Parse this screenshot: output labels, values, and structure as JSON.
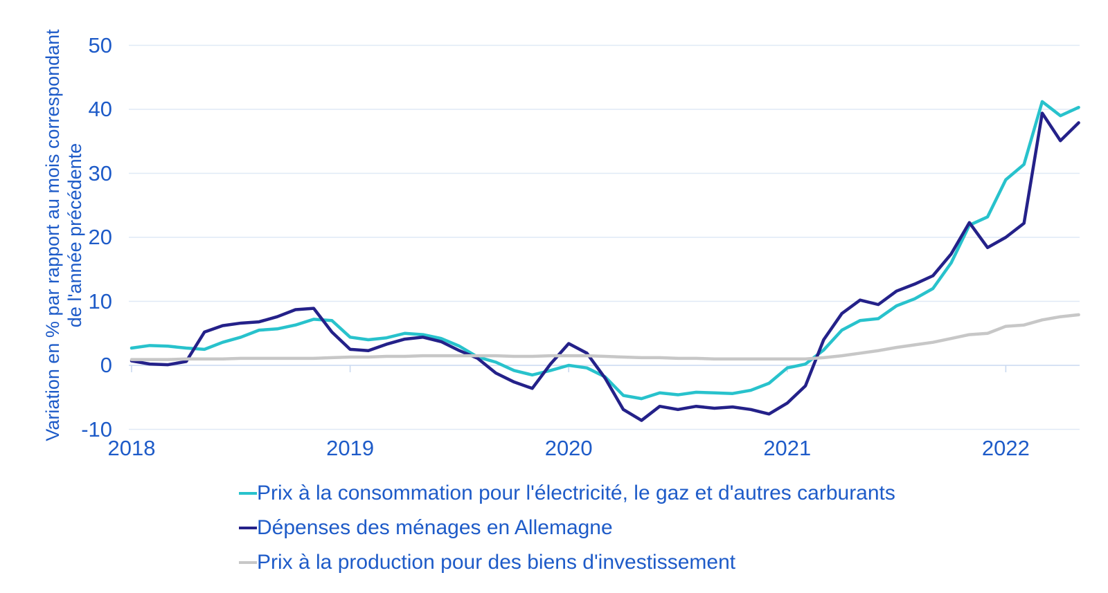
{
  "y_axis": {
    "title_line1": "Variation en % par rapport au mois correspondant",
    "title_line2": "de l'année précédente",
    "tick_labels": [
      "50",
      "40",
      "30",
      "20",
      "10",
      "0",
      "-10"
    ]
  },
  "x_axis": {
    "tick_labels": [
      "2018",
      "2019",
      "2020",
      "2021",
      "2022"
    ]
  },
  "colors": {
    "axis_text": "#1e5bc8",
    "gridline": "#dfe9f6",
    "zero_axis": "#c9d9f0",
    "series_consumer": "#28c2cc",
    "series_households": "#242189",
    "series_producer": "#c7c7c7",
    "background": "#ffffff"
  },
  "chart_data": {
    "type": "line",
    "title": "",
    "ylabel": "Variation en % par rapport au mois correspondant de l'année précédente",
    "xlabel": "",
    "ylim": [
      -10,
      50
    ],
    "y_ticks": [
      50,
      40,
      30,
      20,
      10,
      0,
      -10
    ],
    "grid": "horizontal",
    "legend_position": "bottom-left",
    "x_tick_labels": [
      "2018",
      "2019",
      "2020",
      "2021",
      "2022"
    ],
    "x": [
      "2018-01",
      "2018-02",
      "2018-03",
      "2018-04",
      "2018-05",
      "2018-06",
      "2018-07",
      "2018-08",
      "2018-09",
      "2018-10",
      "2018-11",
      "2018-12",
      "2019-01",
      "2019-02",
      "2019-03",
      "2019-04",
      "2019-05",
      "2019-06",
      "2019-07",
      "2019-08",
      "2019-09",
      "2019-10",
      "2019-11",
      "2019-12",
      "2020-01",
      "2020-02",
      "2020-03",
      "2020-04",
      "2020-05",
      "2020-06",
      "2020-07",
      "2020-08",
      "2020-09",
      "2020-10",
      "2020-11",
      "2020-12",
      "2021-01",
      "2021-02",
      "2021-03",
      "2021-04",
      "2021-05",
      "2021-06",
      "2021-07",
      "2021-08",
      "2021-09",
      "2021-10",
      "2021-11",
      "2021-12",
      "2022-01",
      "2022-02",
      "2022-03",
      "2022-04",
      "2022-05"
    ],
    "series": [
      {
        "name": "Prix à la consommation pour l'électricité, le gaz et d'autres carburants",
        "color": "#28c2cc",
        "values": [
          2.7,
          3.1,
          3.0,
          2.7,
          2.5,
          3.6,
          4.4,
          5.5,
          5.7,
          6.3,
          7.2,
          7.0,
          4.4,
          4.0,
          4.3,
          5.0,
          4.8,
          4.2,
          3.0,
          1.3,
          0.5,
          -0.8,
          -1.5,
          -0.8,
          0.0,
          -0.4,
          -1.8,
          -4.7,
          -5.2,
          -4.3,
          -4.6,
          -4.2,
          -4.3,
          -4.4,
          -3.9,
          -2.8,
          -0.4,
          0.2,
          2.4,
          5.5,
          7.0,
          7.3,
          9.3,
          10.4,
          12.0,
          16.0,
          21.9,
          23.2,
          29.0,
          31.4,
          41.2,
          39.0,
          40.3
        ]
      },
      {
        "name": "Dépenses des ménages en Allemagne",
        "color": "#242189",
        "values": [
          0.7,
          0.2,
          0.1,
          0.6,
          5.2,
          6.2,
          6.6,
          6.8,
          7.6,
          8.7,
          8.9,
          5.2,
          2.5,
          2.3,
          3.3,
          4.1,
          4.4,
          3.7,
          2.3,
          1.1,
          -1.2,
          -2.6,
          -3.6,
          0.2,
          3.4,
          1.9,
          -2.0,
          -6.9,
          -8.6,
          -6.4,
          -6.9,
          -6.4,
          -6.7,
          -6.5,
          -6.9,
          -7.6,
          -5.9,
          -3.2,
          4.0,
          8.1,
          10.2,
          9.5,
          11.6,
          12.7,
          14.0,
          17.4,
          22.3,
          18.4,
          20.0,
          22.2,
          39.4,
          35.1,
          37.9
        ]
      },
      {
        "name": "Prix à la production pour des biens d'investissement",
        "color": "#c7c7c7",
        "values": [
          0.9,
          0.9,
          0.9,
          1.0,
          1.0,
          1.0,
          1.1,
          1.1,
          1.1,
          1.1,
          1.1,
          1.2,
          1.3,
          1.3,
          1.4,
          1.4,
          1.5,
          1.5,
          1.5,
          1.5,
          1.5,
          1.4,
          1.4,
          1.5,
          1.5,
          1.5,
          1.4,
          1.3,
          1.2,
          1.2,
          1.1,
          1.1,
          1.0,
          1.0,
          1.0,
          1.0,
          1.0,
          1.0,
          1.2,
          1.5,
          1.9,
          2.3,
          2.8,
          3.2,
          3.6,
          4.2,
          4.8,
          5.0,
          6.1,
          6.3,
          7.1,
          7.6,
          7.9
        ]
      }
    ]
  }
}
